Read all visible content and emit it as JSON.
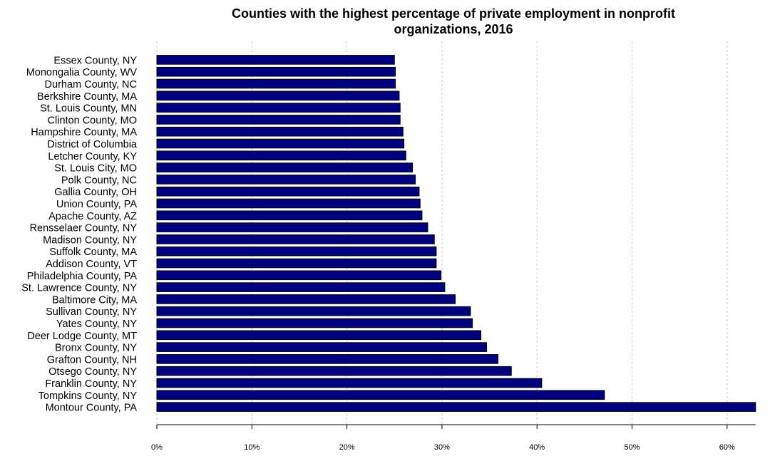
{
  "chart_data": {
    "type": "bar",
    "orientation": "horizontal",
    "title": "Counties with the highest percentage of private employment in nonprofit\norganizations, 2016",
    "xlabel": "",
    "ylabel": "",
    "xlim": [
      0,
      63
    ],
    "x_ticks": [
      "0%",
      "10%",
      "20%",
      "30%",
      "40%",
      "50%",
      "60%"
    ],
    "x_tick_values": [
      0,
      10,
      20,
      30,
      40,
      50,
      60
    ],
    "grid": "vertical dashed",
    "bar_color": "#000080",
    "categories": [
      "Essex County, NY",
      "Monongalia County, WV",
      "Durham County, NC",
      "Berkshire County, MA",
      "St. Louis County, MN",
      "Clinton County, MO",
      "Hampshire County, MA",
      "District of Columbia",
      "Letcher County, KY",
      "St. Louis City, MO",
      "Polk County, NC",
      "Gallia County, OH",
      "Union County, PA",
      "Apache County, AZ",
      "Rensselaer County, NY",
      "Madison County, NY",
      "Suffolk County, MA",
      "Addison County, VT",
      "Philadelphia County, PA",
      "St. Lawrence County, NY",
      "Baltimore City, MA",
      "Sullivan County, NY",
      "Yates County, NY",
      "Deer Lodge County, MT",
      "Bronx County, NY",
      "Grafton County, NH",
      "Otsego County, NY",
      "Franklin County, NY",
      "Tompkins County, NY",
      "Montour County, PA"
    ],
    "values": [
      25.0,
      25.1,
      25.1,
      25.5,
      25.6,
      25.6,
      25.9,
      26.0,
      26.2,
      26.9,
      27.2,
      27.6,
      27.7,
      27.9,
      28.5,
      29.2,
      29.4,
      29.4,
      29.9,
      30.3,
      31.4,
      33.0,
      33.2,
      34.1,
      34.7,
      35.9,
      37.3,
      40.5,
      47.1,
      63.0
    ]
  }
}
